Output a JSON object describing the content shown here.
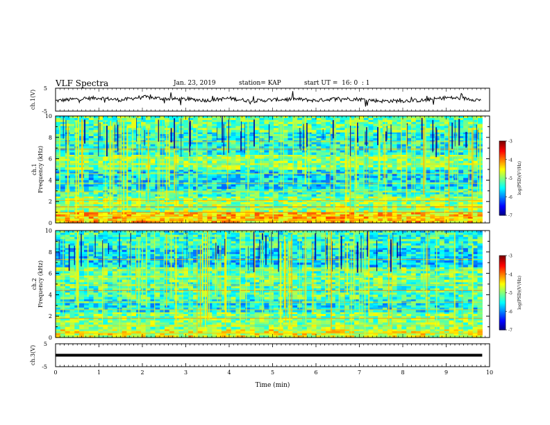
{
  "header": {
    "title": "VLF Spectra",
    "date": "Jan. 23, 2019",
    "station": "station= KAP",
    "start": "start UT =  16: 0  : 1"
  },
  "colors": {
    "spectrogram_low": "#00007f",
    "spectrogram_mid": "#00ffff",
    "spectrogram_high": "#ff0000",
    "trace": "#000000"
  },
  "chart_data": [
    {
      "type": "line",
      "panel": "ch1-waveform",
      "ylabel": "ch.1(V)",
      "ylim": [
        -5,
        5
      ],
      "yticks": [
        "5",
        "-5"
      ],
      "xlim": [
        0,
        10
      ],
      "series": [
        {
          "x": [
            0,
            0.5,
            1,
            1.5,
            2,
            2.5,
            3,
            3.5,
            4,
            4.5,
            5,
            5.5,
            6,
            6.5,
            7,
            7.5,
            8,
            8.5,
            9,
            9.5,
            9.8
          ],
          "values": [
            -0.5,
            0.3,
            0.8,
            -0.2,
            1.2,
            0.4,
            0.2,
            -0.3,
            0.6,
            -0.6,
            -0.1,
            0.3,
            -0.4,
            0.5,
            0.2,
            -0.6,
            -0.5,
            -0.3,
            0.9,
            0.4,
            -0.2
          ]
        }
      ]
    },
    {
      "type": "heatmap",
      "panel": "ch1-spectrogram",
      "ylabel_line1": "ch.1",
      "ylabel_line2": "Frequency (kHz)",
      "ylim": [
        0,
        10
      ],
      "xlim": [
        0,
        9.83
      ],
      "yticks": [
        "0",
        "2",
        "4",
        "6",
        "8",
        "10"
      ],
      "colorbar": {
        "label": "log(PSD)(V²/Hz)",
        "range": [
          -7,
          -3
        ],
        "ticks": [
          "-3",
          "-4",
          "-5",
          "-6",
          "-7"
        ]
      },
      "bands": [
        {
          "from": 0,
          "to": 1.0,
          "level": -4.3
        },
        {
          "from": 1.0,
          "to": 2.5,
          "level": -4.9
        },
        {
          "from": 2.5,
          "to": 3.2,
          "level": -5.3
        },
        {
          "from": 3.2,
          "to": 5.0,
          "level": -5.6
        },
        {
          "from": 5.0,
          "to": 6.4,
          "level": -5.0
        },
        {
          "from": 6.4,
          "to": 8.5,
          "level": -5.4
        },
        {
          "from": 8.5,
          "to": 10,
          "level": -5.1
        }
      ],
      "lines_khz": [
        0.3,
        0.6,
        1.0,
        1.5,
        2.1,
        2.9,
        3.7,
        4.6,
        5.5,
        6.1,
        6.9,
        7.6
      ],
      "sferic_count": 140
    },
    {
      "type": "heatmap",
      "panel": "ch2-spectrogram",
      "ylabel_line1": "ch.2",
      "ylabel_line2": "Frequency (kHz)",
      "ylim": [
        0,
        10
      ],
      "xlim": [
        0,
        9.83
      ],
      "yticks": [
        "0",
        "2",
        "4",
        "6",
        "8",
        "10"
      ],
      "colorbar": {
        "label": "log(PSD)(V²/Hz)",
        "range": [
          -7,
          -3
        ],
        "ticks": [
          "-3",
          "-4",
          "-5",
          "-6",
          "-7"
        ]
      },
      "bands": [
        {
          "from": 0,
          "to": 0.8,
          "level": -4.6
        },
        {
          "from": 0.8,
          "to": 2.4,
          "level": -5.0
        },
        {
          "from": 2.4,
          "to": 3.6,
          "level": -5.5
        },
        {
          "from": 3.6,
          "to": 5.2,
          "level": -5.2
        },
        {
          "from": 5.2,
          "to": 6.6,
          "level": -5.1
        },
        {
          "from": 6.6,
          "to": 8.4,
          "level": -5.6
        },
        {
          "from": 8.4,
          "to": 10,
          "level": -5.3
        }
      ],
      "lines_khz": [
        0.4,
        1.1,
        1.8,
        2.6,
        3.3,
        4.4,
        4.9,
        5.7,
        6.3,
        7.3
      ],
      "sferic_count": 120
    },
    {
      "type": "line",
      "panel": "ch3-waveform",
      "ylabel": "ch.3(V)",
      "ylim": [
        -5,
        5
      ],
      "yticks": [
        "5",
        "-5"
      ],
      "xlim": [
        0,
        10
      ],
      "series": [
        {
          "x": [
            0,
            9.83
          ],
          "values": [
            0,
            0
          ]
        }
      ]
    }
  ],
  "xaxis": {
    "label": "Time (min)",
    "ticks": [
      "0",
      "1",
      "2",
      "3",
      "4",
      "5",
      "6",
      "7",
      "8",
      "9",
      "10"
    ],
    "range": [
      0,
      10
    ]
  }
}
